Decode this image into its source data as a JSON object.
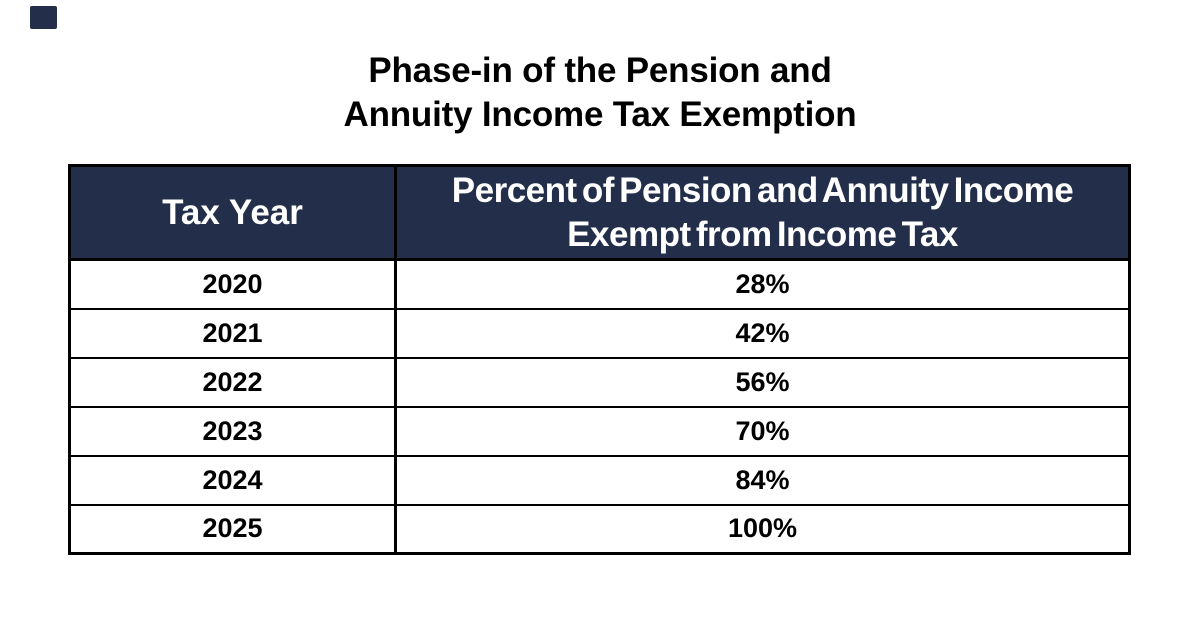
{
  "colors": {
    "header_bg": "#232F4A",
    "header_text": "#FFFFFF",
    "border": "#000000",
    "text": "#000000",
    "background": "#FFFFFF",
    "corner_mark": "#232F4A"
  },
  "title": {
    "line1": "Phase-in of the Pension and",
    "line2": "Annuity Income Tax Exemption"
  },
  "table": {
    "headers": {
      "tax_year": "Tax Year",
      "percent_line1": "Percent of Pension and Annuity Income",
      "percent_line2": "Exempt from Income Tax"
    },
    "rows": [
      {
        "year": "2020",
        "percent": "28%"
      },
      {
        "year": "2021",
        "percent": "42%"
      },
      {
        "year": "2022",
        "percent": "56%"
      },
      {
        "year": "2023",
        "percent": "70%"
      },
      {
        "year": "2024",
        "percent": "84%"
      },
      {
        "year": "2025",
        "percent": "100%"
      }
    ]
  },
  "chart_data": {
    "type": "table",
    "title": "Phase-in of the Pension and Annuity Income Tax Exemption",
    "columns": [
      "Tax Year",
      "Percent of Pension and Annuity Income Exempt from Income Tax"
    ],
    "categories": [
      "2020",
      "2021",
      "2022",
      "2023",
      "2024",
      "2025"
    ],
    "values": [
      28,
      42,
      56,
      70,
      84,
      100
    ],
    "value_unit": "%"
  }
}
